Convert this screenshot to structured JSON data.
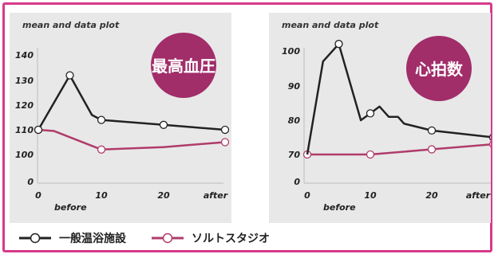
{
  "chart_data": [
    {
      "type": "line",
      "title": "mean and data plot",
      "badge": "最高血圧",
      "x_ticks": [
        "0",
        "10",
        "20",
        "after"
      ],
      "x_sublabel": "before",
      "y_ticks": [
        "0",
        "100",
        "110",
        "120",
        "130",
        "140"
      ],
      "ylim": [
        0,
        145
      ],
      "series": [
        {
          "name": "一般温浴施設",
          "color": "#222222",
          "points": [
            [
              0,
              110
            ],
            [
              5,
              132
            ],
            [
              8.5,
              116
            ],
            [
              10,
              114
            ],
            [
              20,
              112
            ],
            [
              29,
              110
            ]
          ],
          "markers": [
            0,
            1,
            3,
            4,
            5
          ]
        },
        {
          "name": "ソルトスタジオ",
          "color": "#b03c6a",
          "points": [
            [
              0,
              110
            ],
            [
              2.5,
              109.5
            ],
            [
              10,
              102
            ],
            [
              20,
              103
            ],
            [
              29,
              105
            ]
          ],
          "markers": [
            0,
            2,
            4
          ]
        }
      ]
    },
    {
      "type": "line",
      "title": "mean and data plot",
      "badge": "心拍数",
      "x_ticks": [
        "0",
        "10",
        "20",
        "after"
      ],
      "x_sublabel": "before",
      "y_ticks": [
        "0",
        "70",
        "80",
        "90",
        "100"
      ],
      "ylim": [
        0,
        105
      ],
      "series": [
        {
          "name": "一般温浴施設",
          "color": "#222222",
          "points": [
            [
              0,
              70
            ],
            [
              2.5,
              97
            ],
            [
              5,
              102
            ],
            [
              8.5,
              80
            ],
            [
              10,
              82
            ],
            [
              11.5,
              84
            ],
            [
              13,
              81
            ],
            [
              14.5,
              81
            ],
            [
              15.5,
              79
            ],
            [
              20,
              77
            ],
            [
              30,
              75
            ]
          ],
          "markers": [
            2,
            4,
            9,
            10
          ]
        },
        {
          "name": "ソルトスタジオ",
          "color": "#b03c6a",
          "points": [
            [
              0,
              70
            ],
            [
              10,
              70
            ],
            [
              20,
              71.5
            ],
            [
              30,
              73
            ]
          ],
          "markers": [
            0,
            1,
            2,
            3
          ]
        }
      ]
    }
  ],
  "colors": {
    "badge": "#a12d69",
    "frame": "#d63a8c",
    "panel": "#e8e8e8"
  }
}
